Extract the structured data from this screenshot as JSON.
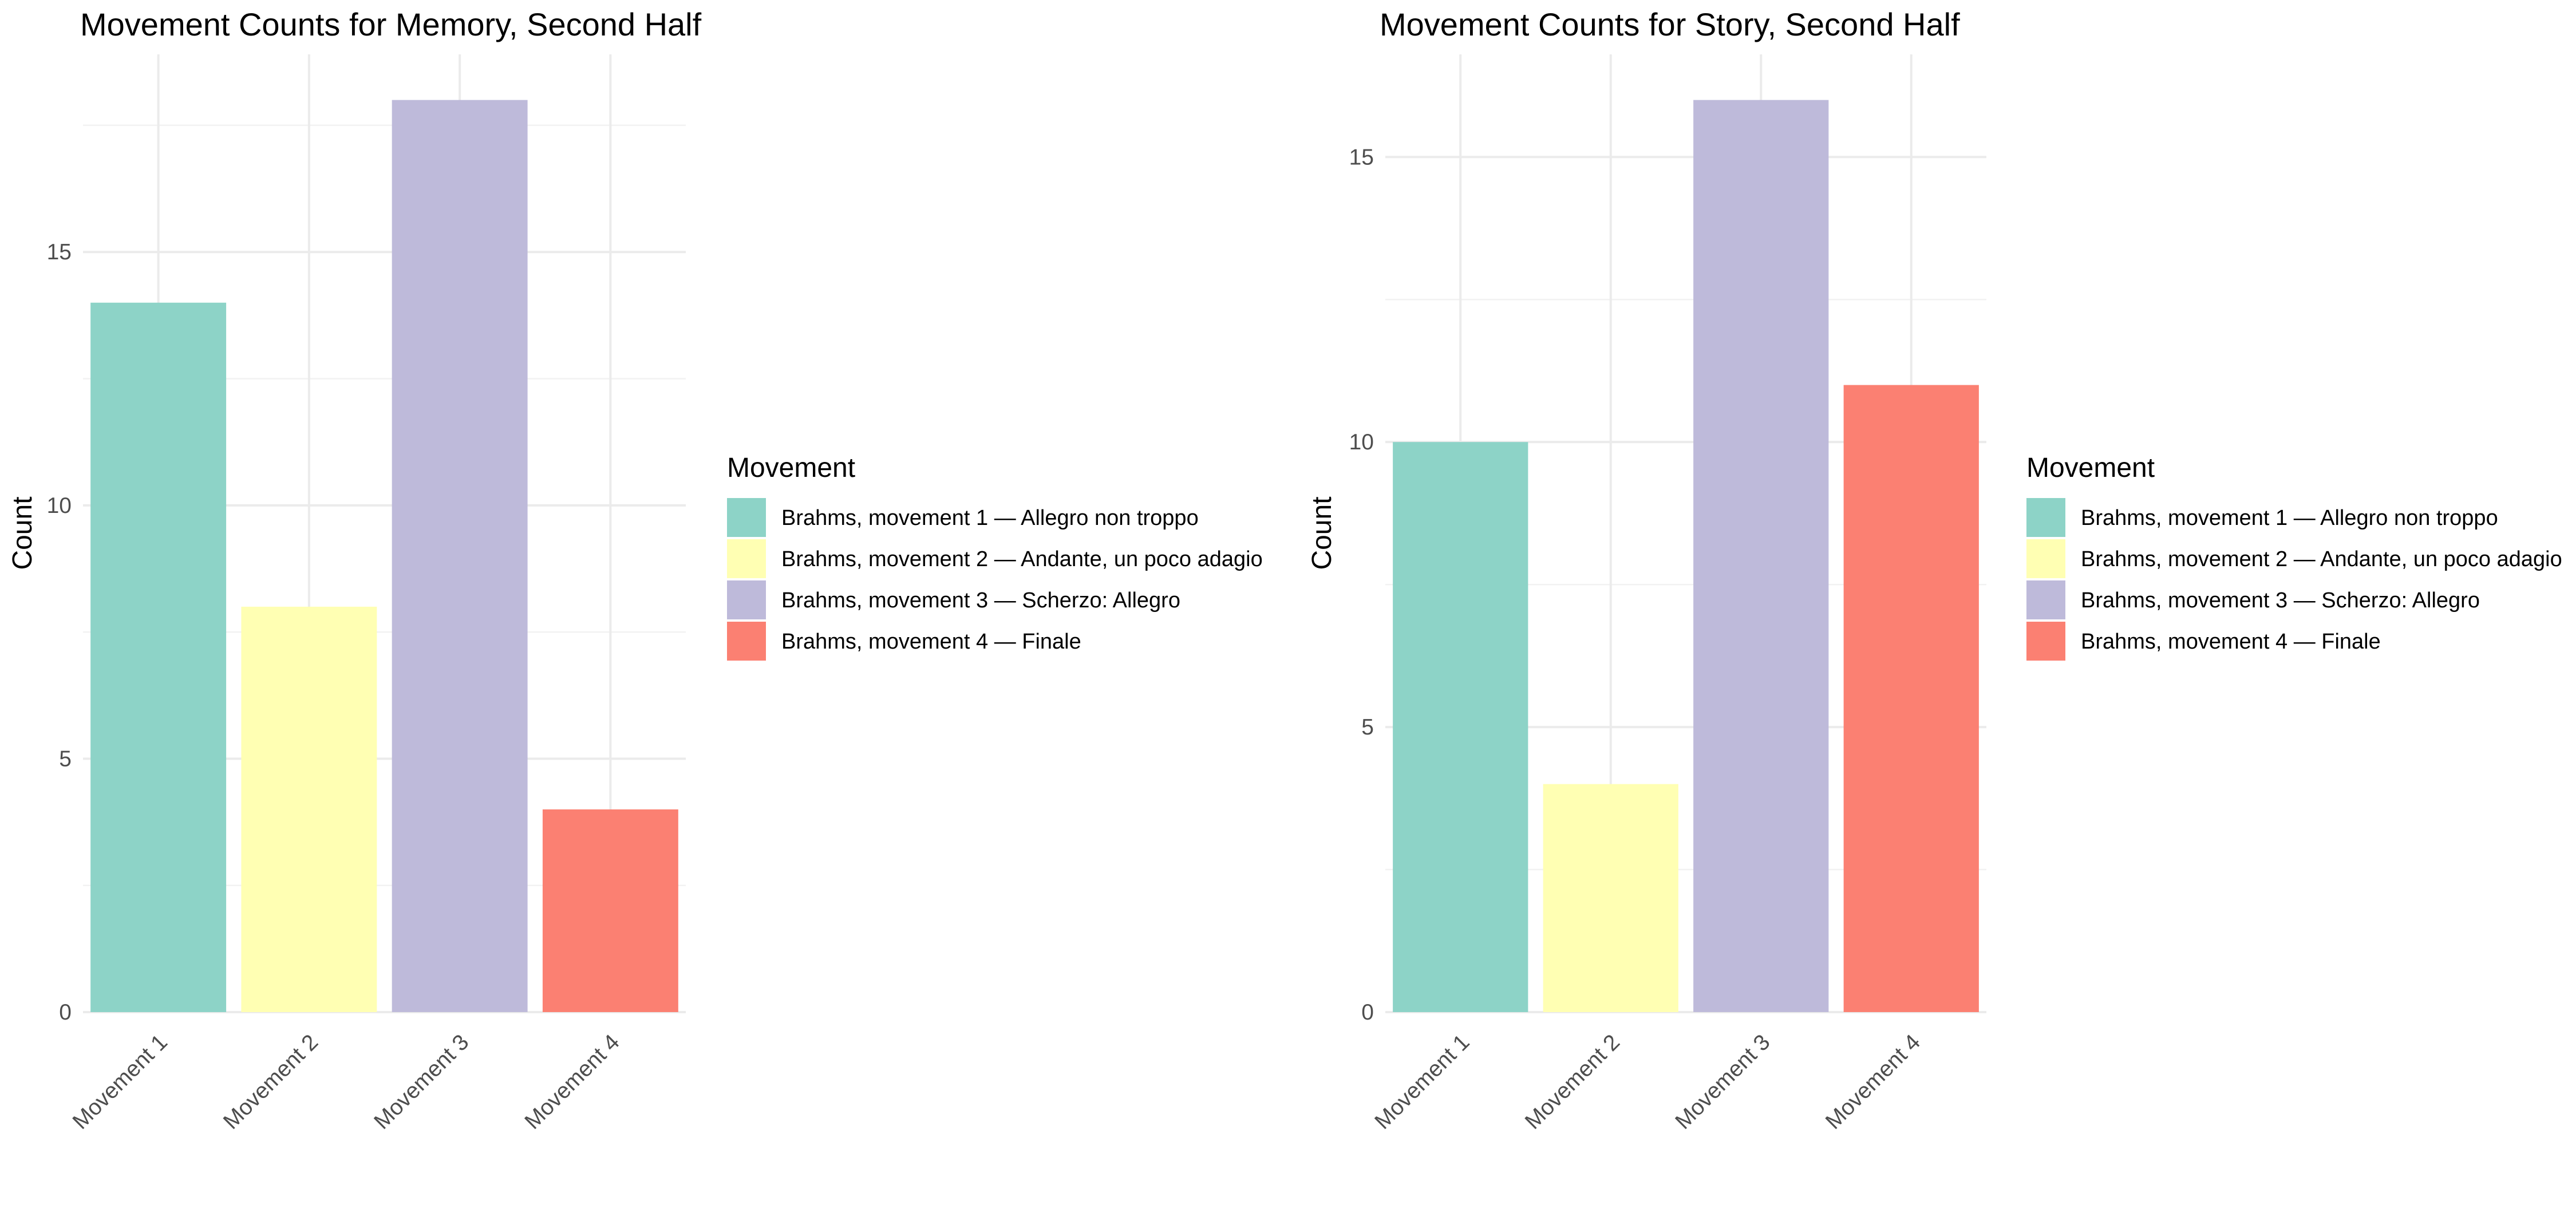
{
  "chart_data": [
    {
      "type": "bar",
      "title": "Movement Counts for Memory, Second Half",
      "xlabel": "",
      "ylabel": "Count",
      "categories": [
        "Movement 1",
        "Movement 2",
        "Movement 3",
        "Movement 4"
      ],
      "values": [
        14,
        8,
        18,
        4
      ],
      "colors": [
        "#8DD3C7",
        "#FFFFB3",
        "#BEBADA",
        "#FB8072"
      ],
      "ylim": [
        0,
        18.9
      ],
      "yticks": [
        0,
        5,
        10,
        15
      ],
      "grid": true,
      "legend": {
        "title": "Movement",
        "position": "right",
        "entries": [
          "Brahms, movement 1 — Allegro non troppo",
          "Brahms, movement 2 — Andante, un poco adagio",
          "Brahms, movement 3 — Scherzo: Allegro",
          "Brahms, movement 4 — Finale"
        ]
      }
    },
    {
      "type": "bar",
      "title": "Movement Counts for Story, Second Half",
      "xlabel": "",
      "ylabel": "Count",
      "categories": [
        "Movement 1",
        "Movement 2",
        "Movement 3",
        "Movement 4"
      ],
      "values": [
        10,
        4,
        16,
        11
      ],
      "colors": [
        "#8DD3C7",
        "#FFFFB3",
        "#BEBADA",
        "#FB8072"
      ],
      "ylim": [
        0,
        16.8
      ],
      "yticks": [
        0,
        5,
        10,
        15
      ],
      "grid": true,
      "legend": {
        "title": "Movement",
        "position": "right",
        "entries": [
          "Brahms, movement 1 — Allegro non troppo",
          "Brahms, movement 2 — Andante, un poco adagio",
          "Brahms, movement 3 — Scherzo: Allegro",
          "Brahms, movement 4 — Finale"
        ]
      }
    }
  ]
}
